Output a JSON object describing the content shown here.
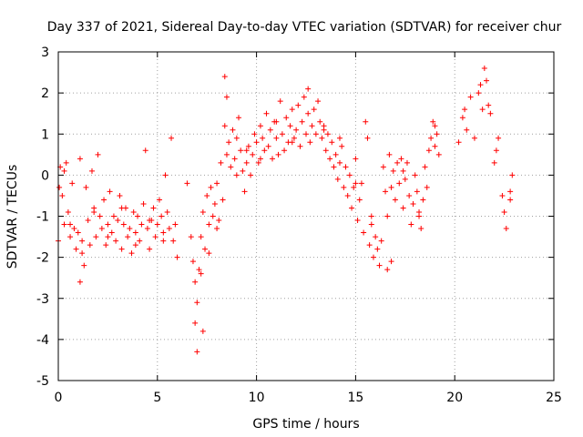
{
  "chart_data": {
    "type": "scatter",
    "title": "Day 337 of 2021, Sidereal Day-to-day VTEC variation (SDTVAR) for receiver chur",
    "xlabel": "GPS time / hours",
    "ylabel": "SDTVAR / TECUs",
    "xlim": [
      0,
      25
    ],
    "ylim": [
      -5,
      3
    ],
    "xticks": [
      0,
      5,
      10,
      15,
      20,
      25
    ],
    "yticks": [
      -5,
      -4,
      -3,
      -2,
      -1,
      0,
      1,
      2,
      3
    ],
    "grid": true,
    "marker": "+",
    "series": [
      {
        "name": "SDTVAR",
        "color": "#ff0000",
        "x": [
          0.0,
          0.1,
          0.2,
          0.3,
          0.4,
          0.5,
          0.6,
          0.7,
          0.8,
          0.9,
          1.0,
          1.1,
          1.2,
          1.3,
          1.4,
          1.5,
          1.6,
          1.7,
          1.8,
          1.9,
          2.0,
          2.1,
          2.2,
          2.3,
          2.4,
          2.5,
          2.6,
          2.7,
          2.8,
          2.9,
          3.0,
          3.1,
          3.2,
          3.3,
          3.4,
          3.5,
          3.6,
          3.7,
          3.8,
          3.9,
          4.0,
          4.1,
          4.2,
          4.3,
          4.4,
          4.5,
          4.6,
          4.7,
          4.8,
          4.9,
          5.0,
          5.1,
          5.2,
          5.3,
          5.4,
          5.5,
          5.6,
          5.7,
          5.8,
          5.9,
          6.0,
          6.5,
          6.7,
          6.8,
          6.9,
          7.0,
          7.1,
          7.2,
          7.3,
          7.4,
          7.5,
          7.6,
          7.7,
          7.8,
          7.9,
          8.0,
          8.1,
          8.2,
          8.3,
          8.4,
          8.5,
          8.6,
          8.7,
          8.8,
          8.9,
          9.0,
          9.1,
          9.2,
          9.3,
          9.4,
          9.5,
          9.6,
          9.7,
          9.8,
          9.9,
          10.0,
          10.1,
          10.2,
          10.3,
          10.4,
          10.5,
          10.6,
          10.7,
          10.8,
          10.9,
          11.0,
          11.1,
          11.2,
          11.3,
          11.4,
          11.5,
          11.6,
          11.7,
          11.8,
          11.9,
          12.0,
          12.1,
          12.2,
          12.3,
          12.4,
          12.5,
          12.6,
          12.7,
          12.8,
          12.9,
          13.0,
          13.1,
          13.2,
          13.3,
          13.4,
          13.5,
          13.6,
          13.7,
          13.8,
          13.9,
          14.0,
          14.1,
          14.2,
          14.3,
          14.4,
          14.5,
          14.6,
          14.7,
          14.8,
          14.9,
          15.0,
          15.1,
          15.2,
          15.3,
          15.4,
          15.5,
          15.6,
          15.7,
          15.8,
          15.9,
          16.0,
          16.1,
          16.2,
          16.3,
          16.4,
          16.5,
          16.6,
          16.7,
          16.8,
          16.9,
          17.0,
          17.1,
          17.2,
          17.3,
          17.4,
          17.5,
          17.6,
          17.7,
          17.8,
          17.9,
          18.0,
          18.1,
          18.2,
          18.3,
          18.4,
          18.5,
          18.6,
          18.7,
          18.8,
          18.9,
          19.0,
          19.1,
          19.2,
          20.2,
          20.4,
          20.6,
          20.8,
          21.0,
          21.2,
          21.4,
          21.5,
          21.6,
          21.8,
          22.0,
          22.2,
          22.4,
          22.6,
          22.8,
          22.9,
          0.05,
          0.3,
          0.6,
          1.2,
          1.8,
          2.5,
          3.2,
          3.9,
          4.6,
          5.3,
          7.2,
          7.6,
          8.0,
          8.4,
          8.5,
          9.0,
          9.5,
          10.2,
          11.0,
          11.8,
          12.6,
          13.4,
          14.2,
          15.0,
          15.8,
          16.6,
          17.4,
          18.2,
          19.0,
          20.5,
          21.3,
          21.7,
          22.1,
          22.5,
          22.8,
          6.9,
          7.0,
          7.3,
          16.8,
          1.1
        ],
        "y": [
          -1.6,
          0.2,
          -0.5,
          -1.2,
          0.3,
          -0.9,
          -1.5,
          -0.2,
          -1.3,
          -1.8,
          -1.4,
          0.4,
          -1.6,
          -2.2,
          -0.3,
          -1.1,
          -1.7,
          0.1,
          -0.8,
          -1.5,
          0.5,
          -1.0,
          -1.3,
          -0.6,
          -1.7,
          -1.2,
          -0.4,
          -1.4,
          -1.0,
          -1.6,
          -1.1,
          -0.5,
          -1.8,
          -1.2,
          -0.8,
          -1.5,
          -1.3,
          -1.9,
          -0.9,
          -1.4,
          -1.0,
          -1.6,
          -1.2,
          -0.7,
          0.6,
          -1.3,
          -1.8,
          -1.1,
          -0.8,
          -1.5,
          -1.2,
          -0.6,
          -1.0,
          -1.4,
          0.0,
          -0.9,
          -1.3,
          0.9,
          -1.6,
          -1.2,
          -2.0,
          -0.2,
          -1.5,
          -2.1,
          -2.6,
          -3.1,
          -2.3,
          -1.5,
          -0.9,
          -1.8,
          -0.5,
          -1.2,
          -0.3,
          -1.0,
          -0.7,
          -0.2,
          -1.1,
          0.3,
          -0.6,
          1.2,
          0.5,
          0.8,
          0.2,
          1.1,
          0.4,
          0.9,
          1.4,
          0.6,
          0.1,
          -0.4,
          0.3,
          0.7,
          0.0,
          0.5,
          1.0,
          0.8,
          0.3,
          1.2,
          0.9,
          0.6,
          1.5,
          0.7,
          1.1,
          0.4,
          1.3,
          0.9,
          0.5,
          1.8,
          1.0,
          0.6,
          1.4,
          0.8,
          1.2,
          1.6,
          0.9,
          1.1,
          1.7,
          0.7,
          1.3,
          1.9,
          1.0,
          1.5,
          0.8,
          1.2,
          1.6,
          1.0,
          1.8,
          1.3,
          0.9,
          1.1,
          0.6,
          1.0,
          0.4,
          0.8,
          0.2,
          0.5,
          -0.1,
          0.3,
          0.7,
          -0.3,
          0.2,
          -0.5,
          0.0,
          -0.8,
          -0.3,
          0.4,
          -1.1,
          -0.6,
          -0.2,
          -1.4,
          1.3,
          0.9,
          -1.7,
          -1.2,
          -2.0,
          -1.5,
          -1.8,
          -2.2,
          -1.6,
          0.2,
          -0.4,
          -1.0,
          0.5,
          -0.3,
          0.1,
          -0.6,
          0.3,
          -0.2,
          0.4,
          -0.8,
          -0.1,
          0.3,
          -0.5,
          -1.2,
          -0.7,
          0.0,
          -0.4,
          -1.0,
          -1.3,
          -0.6,
          0.2,
          -0.3,
          0.6,
          0.9,
          1.3,
          0.7,
          1.0,
          0.5,
          0.8,
          1.4,
          1.1,
          1.9,
          0.9,
          2.0,
          1.6,
          2.6,
          2.3,
          1.5,
          0.3,
          0.9,
          -0.5,
          -1.3,
          -0.4,
          0.0,
          -0.3,
          0.1,
          -1.2,
          -1.9,
          -0.9,
          -1.5,
          -0.8,
          -1.7,
          -1.1,
          -1.6,
          -2.4,
          -1.9,
          -1.3,
          2.4,
          1.9,
          0.0,
          0.6,
          0.4,
          1.3,
          0.8,
          2.1,
          1.2,
          0.9,
          -0.2,
          -1.0,
          -2.3,
          0.1,
          -0.9,
          1.2,
          1.6,
          2.2,
          1.7,
          0.6,
          -0.9,
          -0.6,
          -3.6,
          -4.3,
          -3.8,
          -2.1,
          -2.6
        ]
      }
    ]
  }
}
